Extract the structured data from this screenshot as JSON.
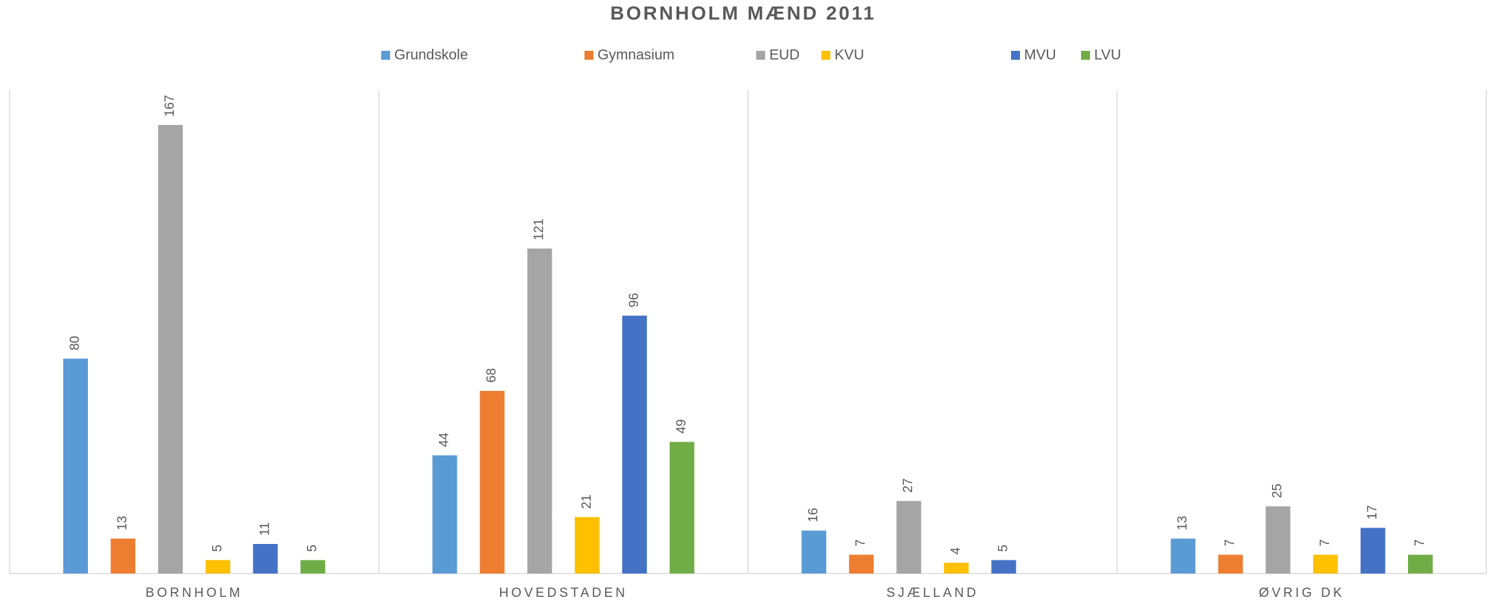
{
  "chart_data": {
    "type": "bar",
    "title": "BORNHOLM MÆND 2011",
    "categories": [
      "BORNHOLM",
      "HOVEDSTADEN",
      "SJÆLLAND",
      "ØVRIG DK"
    ],
    "series": [
      {
        "name": "Grundskole",
        "color": "#5b9bd5",
        "values": [
          80,
          44,
          16,
          13
        ]
      },
      {
        "name": "Gymnasium",
        "color": "#ed7d31",
        "values": [
          13,
          68,
          7,
          7
        ]
      },
      {
        "name": "EUD",
        "color": "#a5a5a5",
        "values": [
          167,
          121,
          27,
          25
        ]
      },
      {
        "name": "KVU",
        "color": "#ffc000",
        "values": [
          5,
          21,
          4,
          7
        ]
      },
      {
        "name": "MVU",
        "color": "#4472c4",
        "values": [
          11,
          96,
          5,
          17
        ]
      },
      {
        "name": "LVU",
        "color": "#70ad47",
        "values": [
          5,
          49,
          null,
          7
        ]
      }
    ]
  }
}
